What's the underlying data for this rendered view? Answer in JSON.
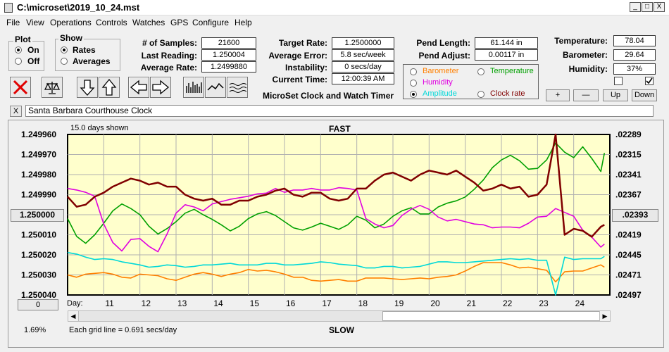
{
  "window": {
    "title": "C:\\microset\\2019_10_24.mst",
    "minimize": "_",
    "maximize": "□",
    "close": "X"
  },
  "menu": [
    "File",
    "View",
    "Operations",
    "Controls",
    "Watches",
    "GPS",
    "Configure",
    "Help"
  ],
  "plot": {
    "label": "Plot",
    "on": "On",
    "off": "Off",
    "selected": "On"
  },
  "show": {
    "label": "Show",
    "rates": "Rates",
    "averages": "Averages",
    "selected": "Rates"
  },
  "stats": {
    "samples_label": "# of Samples:",
    "samples": "21600",
    "last_label": "Last Reading:",
    "last": "1.250004",
    "avg_label": "Average Rate:",
    "avg": "1.2499880",
    "target_label": "Target Rate:",
    "target": "1.2500000",
    "avg_err_label": "Average Error:",
    "avg_err": "5.8 sec/week",
    "instab_label": "Instability:",
    "instab": "0 secs/day",
    "time_label": "Current Time:",
    "time": "12:00:39 AM",
    "pend_len_label": "Pend Length:",
    "pend_len": "61.144 in",
    "pend_adj_label": "Pend Adjust:",
    "pend_adj": "0.00117 in",
    "temp_label": "Temperature:",
    "temp": "78.04",
    "baro_label": "Barometer:",
    "baro": "29.64",
    "hum_label": "Humidity:",
    "hum": "37%"
  },
  "app_title": "MicroSet Clock and Watch Timer",
  "series_select": {
    "barometer": "Barometer",
    "temperature": "Temperature",
    "humidity": "Humidity",
    "amplitude": "Amplitude",
    "clock_rate": "Clock rate",
    "selected": "Amplitude"
  },
  "small_buttons": {
    "plus": "+",
    "minus": "—",
    "up": "Up",
    "down": "Down"
  },
  "clock_name": "Santa Barbara Courthouse Clock",
  "clock_close": "X",
  "colors": {
    "barometer": "#ff8000",
    "temperature": "#00a000",
    "humidity": "#e000e0",
    "amplitude": "#00d8d8",
    "rate": "#800000",
    "plotbg": "#ffffcc"
  },
  "graph": {
    "days_shown": "15.0 days shown",
    "top_label": "FAST",
    "bottom_label": "SLOW",
    "grid_note": "Each grid line = 0.691 secs/day",
    "percent": "1.69%",
    "left_btn": "1.250000",
    "right_btn": ".02393",
    "zero_btn": "0",
    "day_label": "Day:",
    "left_ticks": [
      "1.249960",
      "1.249970",
      "1.249980",
      "1.249990",
      "",
      "1.250010",
      "1.250020",
      "1.250030",
      "1.250040"
    ],
    "right_ticks": [
      ".02289",
      ".02315",
      ".02341",
      ".02367",
      "",
      ".02419",
      ".02445",
      ".02471",
      ".02497"
    ],
    "days": [
      "11",
      "12",
      "13",
      "14",
      "15",
      "16",
      "17",
      "18",
      "19",
      "20",
      "21",
      "22",
      "23",
      "24"
    ]
  },
  "chart_data": {
    "type": "line",
    "x_label": "Day:",
    "x": [
      10.0,
      10.25,
      10.5,
      10.75,
      11.0,
      11.25,
      11.5,
      11.75,
      12.0,
      12.25,
      12.5,
      12.75,
      13.0,
      13.25,
      13.5,
      13.75,
      14.0,
      14.25,
      14.5,
      14.75,
      15.0,
      15.25,
      15.5,
      15.75,
      16.0,
      16.25,
      16.5,
      16.75,
      17.0,
      17.25,
      17.5,
      17.75,
      18.0,
      18.25,
      18.5,
      18.75,
      19.0,
      19.25,
      19.5,
      19.75,
      20.0,
      20.25,
      20.5,
      20.75,
      21.0,
      21.25,
      21.5,
      21.75,
      22.0,
      22.25,
      22.5,
      22.75,
      23.0,
      23.25,
      23.5,
      23.75,
      24.0,
      24.25,
      24.5,
      24.75,
      24.85
    ],
    "ylim_left": [
      1.24996,
      1.25004
    ],
    "ylim_right": [
      0.02289,
      0.02497
    ],
    "series": [
      {
        "name": "Clock rate",
        "axis": "left",
        "values": [
          1.249991,
          1.249996,
          1.249995,
          1.249991,
          1.249989,
          1.249986,
          1.249984,
          1.249982,
          1.249983,
          1.249985,
          1.249984,
          1.249986,
          1.249986,
          1.24999,
          1.249992,
          1.249993,
          1.249992,
          1.249995,
          1.249995,
          1.249993,
          1.249993,
          1.249991,
          1.24999,
          1.249988,
          1.249987,
          1.24999,
          1.249991,
          1.249989,
          1.249989,
          1.249992,
          1.249993,
          1.249992,
          1.249987,
          1.249987,
          1.249983,
          1.24998,
          1.249979,
          1.249981,
          1.249983,
          1.24998,
          1.249978,
          1.249979,
          1.24998,
          1.249978,
          1.249981,
          1.249984,
          1.249988,
          1.249987,
          1.249985,
          1.249987,
          1.249986,
          1.249991,
          1.24999,
          1.249985,
          1.24996,
          1.25001,
          1.250007,
          1.250008,
          1.250011,
          1.250006,
          1.250005
        ]
      },
      {
        "name": "Temperature",
        "axis": "right",
        "values": [
          0.02398,
          0.02421,
          0.0243,
          0.02419,
          0.02404,
          0.02388,
          0.02379,
          0.02385,
          0.02393,
          0.02408,
          0.02418,
          0.02411,
          0.02402,
          0.02391,
          0.02386,
          0.02393,
          0.02399,
          0.02406,
          0.02414,
          0.02408,
          0.02398,
          0.02392,
          0.02389,
          0.02394,
          0.02402,
          0.0241,
          0.02413,
          0.02409,
          0.02404,
          0.02408,
          0.02412,
          0.02406,
          0.02395,
          0.024,
          0.0241,
          0.02405,
          0.02395,
          0.02388,
          0.02384,
          0.02392,
          0.02392,
          0.02383,
          0.02378,
          0.02375,
          0.0237,
          0.0236,
          0.02348,
          0.02332,
          0.02322,
          0.02316,
          0.02323,
          0.02334,
          0.02333,
          0.02322,
          0.023,
          0.02312,
          0.02319,
          0.02305,
          0.0232,
          0.02337,
          0.02313
        ]
      },
      {
        "name": "Humidity",
        "axis": "right",
        "values": [
          0.02359,
          0.02361,
          0.02364,
          0.02369,
          0.02405,
          0.02429,
          0.0244,
          0.02425,
          0.02424,
          0.02434,
          0.02441,
          0.02418,
          0.02391,
          0.0238,
          0.02383,
          0.02388,
          0.02379,
          0.02376,
          0.02373,
          0.02371,
          0.02369,
          0.02366,
          0.02365,
          0.02359,
          0.02364,
          0.02361,
          0.02361,
          0.02359,
          0.02361,
          0.02361,
          0.02358,
          0.02359,
          0.02361,
          0.02398,
          0.02405,
          0.0241,
          0.02407,
          0.02394,
          0.02386,
          0.02381,
          0.02386,
          0.02396,
          0.02401,
          0.02399,
          0.02402,
          0.02405,
          0.02406,
          0.0241,
          0.02409,
          0.02409,
          0.0241,
          0.02404,
          0.02396,
          0.02395,
          0.02385,
          0.0239,
          0.02395,
          0.02413,
          0.02422,
          0.02435,
          0.02431
        ]
      },
      {
        "name": "Amplitude",
        "axis": "right",
        "values": [
          0.02442,
          0.02444,
          0.02448,
          0.02451,
          0.0245,
          0.02451,
          0.02454,
          0.02456,
          0.02458,
          0.02461,
          0.0246,
          0.02458,
          0.02459,
          0.02461,
          0.0246,
          0.02458,
          0.02458,
          0.02457,
          0.02456,
          0.02458,
          0.02458,
          0.02458,
          0.02456,
          0.02456,
          0.02458,
          0.02458,
          0.02457,
          0.02456,
          0.02454,
          0.02455,
          0.02457,
          0.02458,
          0.02459,
          0.02462,
          0.02462,
          0.0246,
          0.0246,
          0.02462,
          0.02461,
          0.0246,
          0.02457,
          0.02454,
          0.02454,
          0.02455,
          0.02455,
          0.02454,
          0.02453,
          0.02452,
          0.02451,
          0.0245,
          0.02451,
          0.0245,
          0.02452,
          0.02452,
          0.02497,
          0.02448,
          0.02451,
          0.0245,
          0.0245,
          0.0245,
          0.02447
        ]
      },
      {
        "name": "Barometer",
        "axis": "right",
        "values": [
          0.02471,
          0.02474,
          0.0247,
          0.02469,
          0.02468,
          0.0247,
          0.02474,
          0.02475,
          0.0247,
          0.02471,
          0.02472,
          0.02476,
          0.02478,
          0.02474,
          0.0247,
          0.02468,
          0.0247,
          0.02473,
          0.0247,
          0.02468,
          0.02464,
          0.02466,
          0.02465,
          0.02467,
          0.0247,
          0.02474,
          0.02474,
          0.02478,
          0.02479,
          0.02478,
          0.02477,
          0.02479,
          0.02479,
          0.02475,
          0.02475,
          0.02475,
          0.02476,
          0.02477,
          0.02476,
          0.02475,
          0.02476,
          0.02474,
          0.02473,
          0.02471,
          0.02466,
          0.0246,
          0.02455,
          0.02455,
          0.02455,
          0.02458,
          0.02462,
          0.02461,
          0.02463,
          0.02465,
          0.0248,
          0.02467,
          0.02466,
          0.02466,
          0.02462,
          0.02458,
          0.02461
        ]
      }
    ]
  }
}
